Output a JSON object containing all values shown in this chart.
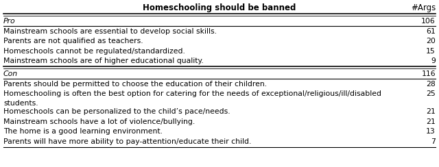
{
  "title": "Homeschooling should be banned",
  "col_header": "#Args",
  "pro_label": "Pro",
  "pro_count": "106",
  "con_label": "Con",
  "con_count": "116",
  "pro_rows": [
    [
      "Mainstream schools are essential to develop social skills.",
      "61"
    ],
    [
      "Parents are not qualified as teachers.",
      "20"
    ],
    [
      "Homeschools cannot be regulated/standardized.",
      "15"
    ],
    [
      "Mainstream schools are of higher educational quality.",
      "9"
    ]
  ],
  "con_rows": [
    [
      "Parents should be permitted to choose the education of their children.",
      "28"
    ],
    [
      "Homeschooling is often the best option for catering for the needs of exceptional/religious/ill/disabled\nstudents.",
      "25"
    ],
    [
      "Homeschools can be personalized to the child’s pace/needs.",
      "21"
    ],
    [
      "Mainstream schools have a lot of violence/bullying.",
      "21"
    ],
    [
      "The home is a good learning environment.",
      "13"
    ],
    [
      "Parents will have more ability to pay-attention/educate their child.",
      "7"
    ]
  ],
  "background_color": "#ffffff",
  "font_size": 7.8,
  "header_font_size": 8.5
}
